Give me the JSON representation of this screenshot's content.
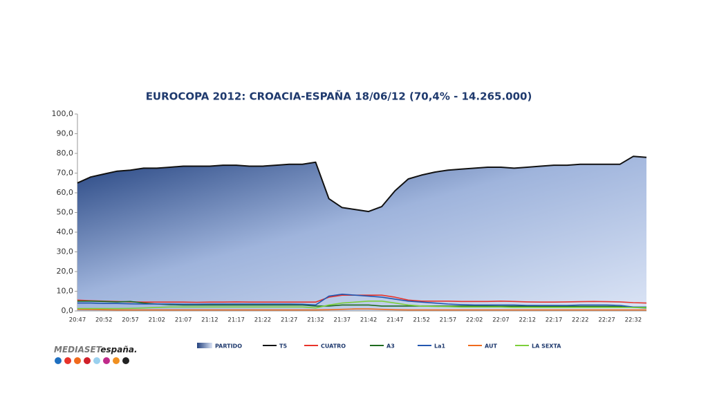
{
  "chart_data": {
    "type": "area-line",
    "title": "EUROCOPA 2012: CROACIA-ESPAÑA 18/06/12 (70,4% - 14.265.000)",
    "categories": [
      "20:47",
      null,
      "20:52",
      null,
      "20:57",
      null,
      "21:02",
      null,
      "21:07",
      null,
      "21:12",
      null,
      "21:17",
      null,
      "21:22",
      null,
      "21:27",
      null,
      "21:32",
      null,
      "21:37",
      null,
      "21:42",
      null,
      "21:47",
      null,
      "21:52",
      null,
      "21:57",
      null,
      "22:02",
      null,
      "22:07",
      null,
      "22:12",
      null,
      "22:17",
      null,
      "22:22",
      null,
      "22:27",
      null,
      "22:32",
      null
    ],
    "ylim": [
      0,
      100
    ],
    "yticks": [
      {
        "value": 0,
        "label": "0,0"
      },
      {
        "value": 10,
        "label": "10,0"
      },
      {
        "value": 20,
        "label": "20,0"
      },
      {
        "value": 30,
        "label": "30,0"
      },
      {
        "value": 40,
        "label": "40,0"
      },
      {
        "value": 50,
        "label": "50,0"
      },
      {
        "value": 60,
        "label": "60,0"
      },
      {
        "value": 70,
        "label": "70,0"
      },
      {
        "value": 80,
        "label": "80,0"
      },
      {
        "value": 90,
        "label": "90,0"
      },
      {
        "value": 100,
        "label": "100,0"
      }
    ],
    "series": [
      {
        "name": "PARTIDO",
        "kind": "area",
        "color": "#2c4a8c",
        "values": [
          65,
          68,
          69.5,
          71,
          71.5,
          72.5,
          72.5,
          73,
          73.5,
          73.5,
          73.5,
          74,
          74,
          73.5,
          73.5,
          74,
          74.5,
          74.5,
          75.5,
          57,
          52.5,
          51.5,
          50.5,
          53,
          61,
          67,
          69,
          70.5,
          71.5,
          72,
          72.5,
          73,
          73,
          72.5,
          73,
          73.5,
          74,
          74,
          74.5,
          74.5,
          74.5,
          74.5,
          78.5,
          78
        ]
      },
      {
        "name": "T5",
        "color": "#111111",
        "values": [
          65,
          68,
          69.5,
          71,
          71.5,
          72.5,
          72.5,
          73,
          73.5,
          73.5,
          73.5,
          74,
          74,
          73.5,
          73.5,
          74,
          74.5,
          74.5,
          75.5,
          57,
          52.5,
          51.5,
          50.5,
          53,
          61,
          67,
          69,
          70.5,
          71.5,
          72,
          72.5,
          73,
          73,
          72.5,
          73,
          73.5,
          74,
          74,
          74.5,
          74.5,
          74.5,
          74.5,
          78.5,
          78
        ]
      },
      {
        "name": "CUATRO",
        "color": "#e8332a",
        "values": [
          5.5,
          5.2,
          5,
          4.8,
          4.6,
          4.5,
          4.5,
          4.5,
          4.5,
          4.4,
          4.5,
          4.5,
          4.6,
          4.5,
          4.5,
          4.5,
          4.5,
          4.5,
          4.5,
          7,
          8,
          8,
          8,
          8,
          7,
          5.5,
          5,
          5,
          5,
          4.8,
          4.8,
          4.8,
          5,
          4.8,
          4.6,
          4.5,
          4.5,
          4.6,
          4.7,
          4.8,
          4.7,
          4.6,
          4.2,
          4
        ]
      },
      {
        "name": "A3",
        "color": "#1e6b1e",
        "values": [
          5,
          5,
          4.8,
          4.6,
          4.8,
          4,
          3.5,
          3.2,
          3,
          3,
          3,
          3,
          3,
          3,
          3,
          3,
          3,
          3,
          2.5,
          2.5,
          3,
          3,
          3,
          2.5,
          2.5,
          2.5,
          2.5,
          2.5,
          2.5,
          2.5,
          2.5,
          2.5,
          2.4,
          2.4,
          2.4,
          2.3,
          2.3,
          2.3,
          2.3,
          2.3,
          2.3,
          2.2,
          1.8,
          1.5
        ]
      },
      {
        "name": "La1",
        "color": "#2256b0",
        "values": [
          4,
          4,
          3.8,
          3.8,
          3.6,
          3.5,
          3.5,
          3.5,
          3.4,
          3.4,
          3.5,
          3.5,
          3.5,
          3.5,
          3.5,
          3.5,
          3.5,
          3.4,
          3,
          7.5,
          8.5,
          8,
          7.5,
          7,
          6,
          5,
          4.5,
          4,
          3.5,
          3.2,
          3,
          3,
          3,
          3,
          2.8,
          2.8,
          2.8,
          2.8,
          3,
          3,
          3,
          2.8,
          2,
          2
        ]
      },
      {
        "name": "AUT",
        "color": "#f06a1c",
        "values": [
          0.8,
          0.7,
          0.6,
          0.5,
          0.5,
          0.5,
          0.5,
          0.5,
          0.5,
          0.5,
          0.5,
          0.5,
          0.5,
          0.5,
          0.5,
          0.5,
          0.5,
          0.5,
          0.5,
          0.6,
          0.8,
          1,
          1,
          0.8,
          0.6,
          0.5,
          0.5,
          0.5,
          0.5,
          0.5,
          0.5,
          0.5,
          0.5,
          0.5,
          0.5,
          0.5,
          0.5,
          0.5,
          0.5,
          0.5,
          0.5,
          0.5,
          0.5,
          0.5
        ]
      },
      {
        "name": "LA SEXTA",
        "color": "#7ccf3a",
        "values": [
          1.2,
          1.2,
          1.2,
          1.2,
          1.3,
          1.5,
          1.8,
          2,
          2,
          2,
          2,
          2,
          2,
          2,
          2,
          2,
          2,
          2,
          1.5,
          3,
          4,
          4.5,
          5,
          5,
          4,
          3,
          2.5,
          2.3,
          2.2,
          2,
          2,
          2,
          2,
          1.8,
          1.8,
          1.8,
          1.8,
          1.8,
          1.8,
          1.8,
          1.8,
          1.8,
          1.8,
          1.8
        ]
      }
    ]
  },
  "logo": {
    "brand": "MEDIASET",
    "suffix": "españa."
  }
}
